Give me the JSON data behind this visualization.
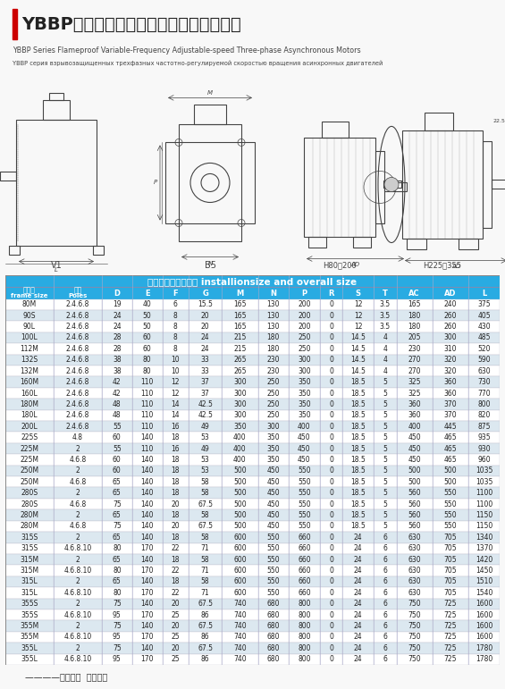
{
  "title_cn": "YBBP系列隔爆型变频调速三相异步电动机",
  "title_en": "YBBP Series Flameproof Variable-Frequency Adjustable-speed Three-phase Asynchronous Motors",
  "title_ru": "YBBP серия взрывозащищенных трехфазных частотно-регулируемой скоростью вращения асинхронных двигателей",
  "table_header_cn": "安装尺寸及外形尺寸 installionsize and overall size",
  "col_headers": [
    "机座号\nframe size",
    "极数\nPoles",
    "D",
    "E",
    "F",
    "G",
    "M",
    "N",
    "P",
    "R",
    "S",
    "T",
    "AC",
    "AD",
    "L"
  ],
  "footer": "————以诚待人  以质取胜",
  "bg_color": "#f0f0f0",
  "header_bg": "#29abe2",
  "header_text": "#ffffff",
  "row_alt1": "#ffffff",
  "row_alt2": "#dce8f0",
  "table_data": [
    [
      "80M",
      "2.4.6.8",
      19,
      40,
      6,
      15.5,
      165,
      130,
      200,
      0,
      12,
      3.5,
      165,
      240,
      375
    ],
    [
      "90S",
      "2.4.6.8",
      24,
      50,
      8,
      20,
      165,
      130,
      200,
      0,
      12,
      3.5,
      180,
      260,
      405
    ],
    [
      "90L",
      "2.4.6.8",
      24,
      50,
      8,
      20,
      165,
      130,
      200,
      0,
      12,
      3.5,
      180,
      260,
      430
    ],
    [
      "100L",
      "2.4.6.8",
      28,
      60,
      8,
      24,
      215,
      180,
      250,
      0,
      14.5,
      4,
      205,
      300,
      485
    ],
    [
      "112M",
      "2.4.6.8",
      28,
      60,
      8,
      24,
      215,
      180,
      250,
      0,
      14.5,
      4,
      230,
      310,
      520
    ],
    [
      "132S",
      "2.4.6.8",
      38,
      80,
      10,
      33,
      265,
      230,
      300,
      0,
      14.5,
      4,
      270,
      320,
      590
    ],
    [
      "132M",
      "2.4.6.8",
      38,
      80,
      10,
      33,
      265,
      230,
      300,
      0,
      14.5,
      4,
      270,
      320,
      630
    ],
    [
      "160M",
      "2.4.6.8",
      42,
      110,
      12,
      37,
      300,
      250,
      350,
      0,
      18.5,
      5,
      325,
      360,
      730
    ],
    [
      "160L",
      "2.4.6.8",
      42,
      110,
      12,
      37,
      300,
      250,
      350,
      0,
      18.5,
      5,
      325,
      360,
      770
    ],
    [
      "180M",
      "2.4.6.8",
      48,
      110,
      14,
      42.5,
      300,
      250,
      350,
      0,
      18.5,
      5,
      360,
      370,
      800
    ],
    [
      "180L",
      "2.4.6.8",
      48,
      110,
      14,
      42.5,
      300,
      250,
      350,
      0,
      18.5,
      5,
      360,
      370,
      820
    ],
    [
      "200L",
      "2.4.6.8",
      55,
      110,
      16,
      49,
      350,
      300,
      400,
      0,
      18.5,
      5,
      400,
      445,
      875
    ],
    [
      "225S",
      "4.8",
      60,
      140,
      18,
      53,
      400,
      350,
      450,
      0,
      18.5,
      5,
      450,
      465,
      935
    ],
    [
      "225M",
      "2",
      55,
      110,
      16,
      49,
      400,
      350,
      450,
      0,
      18.5,
      5,
      450,
      465,
      930
    ],
    [
      "225M",
      "4.6.8",
      60,
      140,
      18,
      53,
      400,
      350,
      450,
      0,
      18.5,
      5,
      450,
      465,
      960
    ],
    [
      "250M",
      "2",
      60,
      140,
      18,
      53,
      500,
      450,
      550,
      0,
      18.5,
      5,
      500,
      500,
      1035
    ],
    [
      "250M",
      "4.6.8",
      65,
      140,
      18,
      58,
      500,
      450,
      550,
      0,
      18.5,
      5,
      500,
      500,
      1035
    ],
    [
      "280S",
      "2",
      65,
      140,
      18,
      58,
      500,
      450,
      550,
      0,
      18.5,
      5,
      560,
      550,
      1100
    ],
    [
      "280S",
      "4.6.8",
      75,
      140,
      20,
      67.5,
      500,
      450,
      550,
      0,
      18.5,
      5,
      560,
      550,
      1100
    ],
    [
      "280M",
      "2",
      65,
      140,
      18,
      58,
      500,
      450,
      550,
      0,
      18.5,
      5,
      560,
      550,
      1150
    ],
    [
      "280M",
      "4.6.8",
      75,
      140,
      20,
      67.5,
      500,
      450,
      550,
      0,
      18.5,
      5,
      560,
      550,
      1150
    ],
    [
      "315S",
      "2",
      65,
      140,
      18,
      58,
      600,
      550,
      660,
      0,
      24,
      6,
      630,
      705,
      1340
    ],
    [
      "315S",
      "4.6.8.10",
      80,
      170,
      22,
      71,
      600,
      550,
      660,
      0,
      24,
      6,
      630,
      705,
      1370
    ],
    [
      "315M",
      "2",
      65,
      140,
      18,
      58,
      600,
      550,
      660,
      0,
      24,
      6,
      630,
      705,
      1420
    ],
    [
      "315M",
      "4.6.8.10",
      80,
      170,
      22,
      71,
      600,
      550,
      660,
      0,
      24,
      6,
      630,
      705,
      1450
    ],
    [
      "315L",
      "2",
      65,
      140,
      18,
      58,
      600,
      550,
      660,
      0,
      24,
      6,
      630,
      705,
      1510
    ],
    [
      "315L",
      "4.6.8.10",
      80,
      170,
      22,
      71,
      600,
      550,
      660,
      0,
      24,
      6,
      630,
      705,
      1540
    ],
    [
      "355S",
      "2",
      75,
      140,
      20,
      67.5,
      740,
      680,
      800,
      0,
      24,
      6,
      750,
      725,
      1600
    ],
    [
      "355S",
      "4.6.8.10",
      95,
      170,
      25,
      86,
      740,
      680,
      800,
      0,
      24,
      6,
      750,
      725,
      1600
    ],
    [
      "355M",
      "2",
      75,
      140,
      20,
      67.5,
      740,
      680,
      800,
      0,
      24,
      6,
      750,
      725,
      1600
    ],
    [
      "355M",
      "4.6.8.10",
      95,
      170,
      25,
      86,
      740,
      680,
      800,
      0,
      24,
      6,
      750,
      725,
      1600
    ],
    [
      "355L",
      "2",
      75,
      140,
      20,
      67.5,
      740,
      680,
      800,
      0,
      24,
      6,
      750,
      725,
      1780
    ],
    [
      "355L",
      "4.6.8.10",
      95,
      170,
      25,
      86,
      740,
      680,
      800,
      0,
      24,
      6,
      750,
      725,
      1780
    ]
  ]
}
